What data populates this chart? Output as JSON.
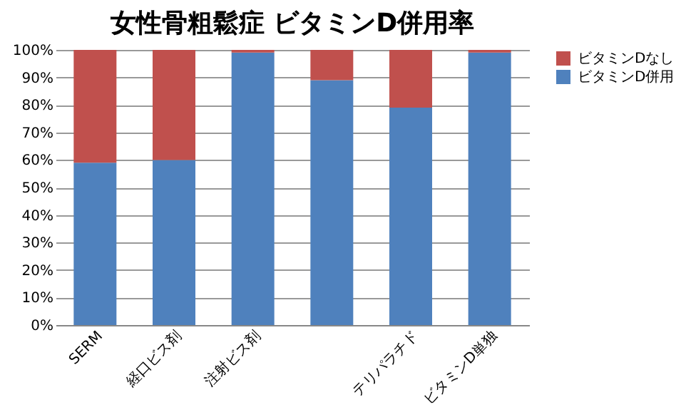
{
  "chart_data": {
    "type": "bar",
    "title": "女性骨粗鬆症 ビタミンD併用率",
    "categories": [
      "SERM",
      "経口ビス剤",
      "注射ビス剤",
      null,
      "テリパラチド",
      "ビタミンD単独"
    ],
    "series": [
      {
        "name": "ビタミンD併用",
        "color": "#4f81bd",
        "values": [
          59,
          60,
          99,
          89,
          79,
          99
        ]
      },
      {
        "name": "ビタミンDなし",
        "color": "#c0504d",
        "values": [
          41,
          40,
          1,
          11,
          21,
          1
        ]
      }
    ],
    "stacked": true,
    "ylim": [
      0,
      100
    ],
    "yticks": [
      {
        "value": 0,
        "label": "0%"
      },
      {
        "value": 10,
        "label": "10%"
      },
      {
        "value": 20,
        "label": "20%"
      },
      {
        "value": 30,
        "label": "30%"
      },
      {
        "value": 40,
        "label": "40%"
      },
      {
        "value": 50,
        "label": "50%"
      },
      {
        "value": 60,
        "label": "60%"
      },
      {
        "value": 70,
        "label": "70%"
      },
      {
        "value": 80,
        "label": "80%"
      },
      {
        "value": 90,
        "label": "90%"
      },
      {
        "value": 100,
        "label": "100%"
      }
    ],
    "grid": "y",
    "legend": "right"
  }
}
